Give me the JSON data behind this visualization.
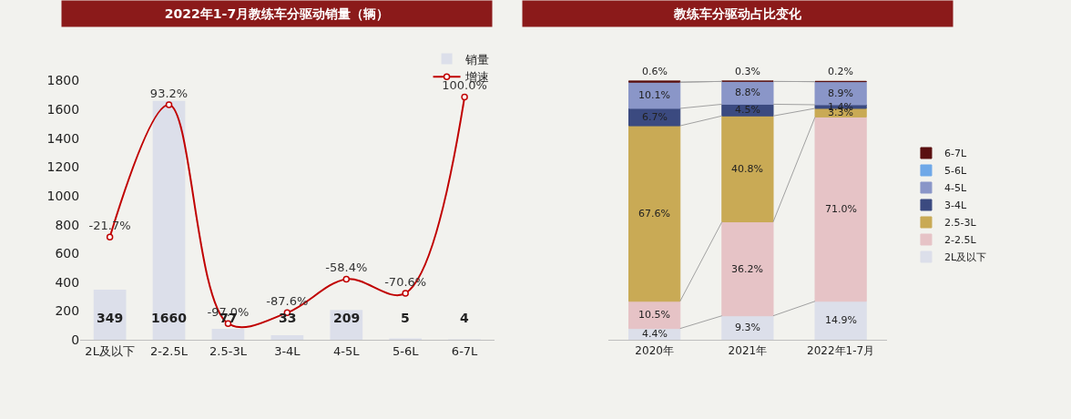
{
  "chart_data": [
    {
      "type": "bar",
      "title": "2022年1-7月教练车分驱动销量（辆）",
      "categories": [
        "2L及以下",
        "2-2.5L",
        "2.5-3L",
        "3-4L",
        "4-5L",
        "5-6L",
        "6-7L"
      ],
      "series": [
        {
          "name": "销量",
          "type": "bar",
          "color": "#dcdfea",
          "values": [
            349,
            1660,
            77,
            33,
            209,
            5,
            4
          ]
        },
        {
          "name": "增速",
          "type": "line",
          "axis": "y2",
          "color": "#c00000",
          "marker": "circle",
          "values": [
            -21.7,
            93.2,
            -97.0,
            -87.6,
            -58.4,
            -70.6,
            100.0
          ],
          "value_labels": [
            "-21.7%",
            "93.2%",
            "-97.0%",
            "-87.6%",
            "-58.4%",
            "-70.6%",
            "100.0%"
          ]
        }
      ],
      "ylim": [
        0,
        1800
      ],
      "yticks": [
        0,
        200,
        400,
        600,
        800,
        1000,
        1200,
        1400,
        1600,
        1800
      ],
      "data_labels": true,
      "grid": false,
      "legend": "top right"
    },
    {
      "type": "bar",
      "title": "教练车分驱动占比变化",
      "categories": [
        "2020年",
        "2021年",
        "2022年1-7月"
      ],
      "stacked": true,
      "series": [
        {
          "name": "2L及以下",
          "color": "#dcdfea",
          "values": [
            4.4,
            9.3,
            14.9
          ],
          "value_labels": [
            "4.4%",
            "9.3%",
            "14.9%"
          ]
        },
        {
          "name": "2-2.5L",
          "color": "#e6c3c6",
          "values": [
            10.5,
            36.2,
            71.0
          ],
          "value_labels": [
            "10.5%",
            "36.2%",
            "71.0%"
          ]
        },
        {
          "name": "2.5-3L",
          "color": "#c9aa55",
          "values": [
            67.6,
            40.8,
            3.3
          ],
          "value_labels": [
            "67.6%",
            "40.8%",
            "3.3%"
          ]
        },
        {
          "name": "3-4L",
          "color": "#3b4a80",
          "values": [
            6.7,
            4.5,
            1.4
          ],
          "value_labels": [
            "6.7%",
            "4.5%",
            "1.4%"
          ]
        },
        {
          "name": "4-5L",
          "color": "#8a96c8",
          "values": [
            10.1,
            8.8,
            8.9
          ],
          "value_labels": [
            "10.1%",
            "8.8%",
            "8.9%"
          ]
        },
        {
          "name": "5-6L",
          "color": "#6fa8e8",
          "values": [
            null,
            null,
            null
          ],
          "value_labels": [
            null,
            null,
            null
          ]
        },
        {
          "name": "6-7L",
          "color": "#5a1010",
          "values": [
            0.6,
            0.3,
            0.2
          ],
          "value_labels": [
            "0.6%",
            "0.3%",
            "0.2%"
          ]
        }
      ],
      "legend": "right",
      "grid": false
    }
  ]
}
